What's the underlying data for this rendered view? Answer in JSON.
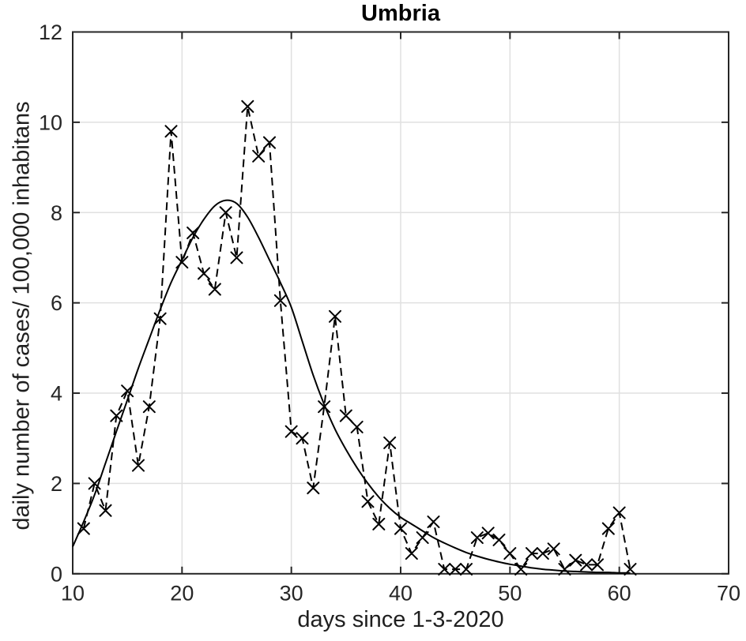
{
  "window": {
    "background": "#ffffff"
  },
  "chart_data": {
    "type": "line",
    "title": "Umbria",
    "xlabel": "days since 1-3-2020",
    "ylabel": "daily number of cases/ 100,000 inhabitans",
    "xlim": [
      10,
      70
    ],
    "ylim": [
      0,
      12
    ],
    "xticks": [
      10,
      20,
      30,
      40,
      50,
      60,
      70
    ],
    "yticks": [
      0,
      2,
      4,
      6,
      8,
      10,
      12
    ],
    "grid": true,
    "legend": "none",
    "axis_color": "#262626",
    "grid_color": "#e0e0e0",
    "line_color": "#000000",
    "series": [
      {
        "name": "daily-cases-data",
        "line_style": "dashed",
        "marker": "x",
        "x": [
          11,
          12,
          13,
          14,
          15,
          16,
          17,
          18,
          19,
          20,
          21,
          22,
          23,
          24,
          25,
          26,
          27,
          28,
          29,
          30,
          31,
          32,
          33,
          34,
          35,
          36,
          37,
          38,
          39,
          40,
          41,
          42,
          43,
          44,
          45,
          46,
          47,
          48,
          49,
          50,
          51,
          52,
          53,
          54,
          55,
          56,
          57,
          58,
          59,
          60,
          61
        ],
        "y": [
          1.0,
          2.0,
          1.4,
          3.5,
          4.05,
          2.4,
          3.7,
          5.65,
          9.8,
          6.9,
          7.55,
          6.65,
          6.3,
          8.0,
          7.0,
          10.35,
          9.25,
          9.55,
          6.05,
          3.15,
          3.0,
          1.9,
          3.7,
          5.7,
          3.5,
          3.25,
          1.6,
          1.1,
          2.9,
          1.0,
          0.45,
          0.8,
          1.15,
          0.1,
          0.1,
          0.1,
          0.8,
          0.9,
          0.75,
          0.45,
          0.1,
          0.45,
          0.45,
          0.55,
          0.1,
          0.3,
          0.2,
          0.2,
          1.0,
          1.35,
          0.1
        ]
      },
      {
        "name": "fitted-curve",
        "line_style": "solid",
        "marker": "none",
        "x": [
          10,
          11,
          12,
          13,
          14,
          15,
          16,
          17,
          18,
          19,
          20,
          21,
          22,
          23,
          24,
          25,
          26,
          27,
          28,
          29,
          30,
          31,
          32,
          33,
          34,
          35,
          36,
          37,
          38,
          39,
          40,
          41,
          42,
          43,
          44,
          45,
          46,
          47,
          48,
          49,
          50,
          51,
          52,
          53,
          54,
          55,
          56,
          57,
          58,
          59,
          60,
          61
        ],
        "y": [
          0.6,
          1.15,
          1.75,
          2.45,
          3.15,
          3.85,
          4.55,
          5.2,
          5.85,
          6.45,
          6.95,
          7.45,
          7.85,
          8.15,
          8.27,
          8.2,
          7.9,
          7.45,
          6.95,
          6.45,
          5.9,
          5.15,
          4.4,
          3.75,
          3.2,
          2.75,
          2.35,
          2.0,
          1.7,
          1.45,
          1.25,
          1.1,
          0.95,
          0.8,
          0.68,
          0.57,
          0.47,
          0.39,
          0.32,
          0.26,
          0.21,
          0.17,
          0.13,
          0.1,
          0.08,
          0.06,
          0.05,
          0.04,
          0.03,
          0.03,
          0.02,
          0.02
        ]
      }
    ]
  }
}
